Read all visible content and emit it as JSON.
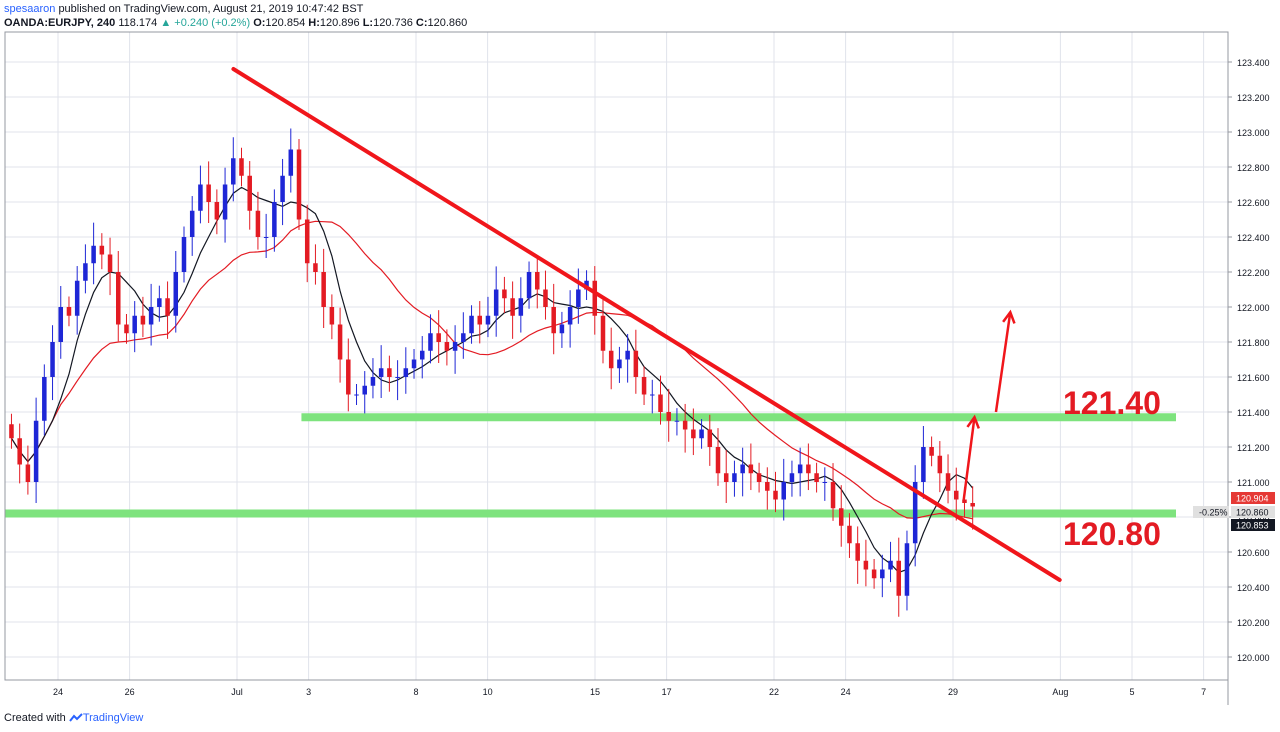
{
  "header": {
    "author": "spesaaron",
    "published_text": "published on TradingView.com, August 21, 2019 10:47:42 BST",
    "symbol": "OANDA:EURJPY, 240",
    "last": "118.174",
    "change": "▲ +0.240 (+0.2%)",
    "o_label": "O:",
    "o_val": "120.854",
    "h_label": "H:",
    "h_val": "120.896",
    "l_label": "L:",
    "l_val": "120.736",
    "c_label": "C:",
    "c_val": "120.860"
  },
  "footer": {
    "created_with": "Created with",
    "brand": "TradingView"
  },
  "chart_data": {
    "type": "candlestick",
    "y_range": [
      119.9,
      123.5
    ],
    "y_ticks": [
      120.0,
      120.2,
      120.4,
      120.6,
      120.8,
      121.0,
      121.2,
      121.4,
      121.6,
      121.8,
      122.0,
      122.2,
      122.4,
      122.6,
      122.8,
      123.0,
      123.2,
      123.4
    ],
    "y_tick_labels": [
      "120.000",
      "120.200",
      "120.400",
      "120.600",
      "120.800",
      "121.000",
      "121.200",
      "121.400",
      "121.600",
      "121.800",
      "122.000",
      "122.200",
      "122.400",
      "122.600",
      "122.800",
      "123.000",
      "123.200",
      "123.400"
    ],
    "x_range": [
      21.0,
      38.0
    ],
    "x_ticks": [
      {
        "t": 22.0,
        "label": "24"
      },
      {
        "t": 24.0,
        "label": "26"
      },
      {
        "t": 27.0,
        "label": "Jul"
      },
      {
        "t": 29.0,
        "label": "3"
      },
      {
        "t": 32.0,
        "label": "8"
      },
      {
        "t": 34.0,
        "label": "10"
      },
      {
        "t": 37.0,
        "label": "15"
      },
      {
        "t": 39.0,
        "label": "17"
      },
      {
        "t": 42.0,
        "label": "22"
      },
      {
        "t": 44.0,
        "label": "24"
      },
      {
        "t": 47.0,
        "label": "29"
      },
      {
        "t": 50.0,
        "label": "Aug"
      },
      {
        "t": 52.0,
        "label": "5"
      },
      {
        "t": 54.0,
        "label": "7"
      }
    ],
    "candles_closes": [
      121.25,
      121.1,
      121.0,
      121.35,
      121.6,
      121.8,
      122.0,
      121.95,
      122.15,
      122.25,
      122.35,
      122.3,
      122.2,
      121.9,
      121.85,
      121.95,
      121.9,
      122.0,
      122.05,
      121.95,
      122.2,
      122.4,
      122.55,
      122.7,
      122.6,
      122.5,
      122.7,
      122.85,
      122.75,
      122.55,
      122.4,
      122.4,
      122.6,
      122.75,
      122.9,
      122.5,
      122.25,
      122.2,
      122.0,
      121.9,
      121.7,
      121.5,
      121.5,
      121.55,
      121.6,
      121.65,
      121.6,
      121.6,
      121.65,
      121.7,
      121.75,
      121.85,
      121.8,
      121.75,
      121.8,
      121.85,
      121.95,
      121.9,
      121.95,
      122.1,
      122.05,
      121.95,
      122.05,
      122.2,
      122.1,
      122.0,
      121.85,
      121.9,
      122.0,
      122.1,
      122.15,
      121.95,
      121.75,
      121.65,
      121.7,
      121.75,
      121.6,
      121.5,
      121.5,
      121.4,
      121.35,
      121.35,
      121.3,
      121.25,
      121.3,
      121.2,
      121.05,
      121.0,
      121.05,
      121.1,
      121.05,
      121.0,
      120.95,
      120.9,
      121.0,
      121.05,
      121.1,
      121.05,
      121.0,
      121.0,
      120.85,
      120.75,
      120.65,
      120.55,
      120.5,
      120.45,
      120.5,
      120.55,
      120.35,
      120.65,
      121.0,
      121.2,
      121.15,
      121.05,
      120.95,
      120.9,
      120.88,
      120.86
    ],
    "trendline_down": {
      "from": [
        26.9,
        123.36
      ],
      "to": [
        49.98,
        120.44
      ]
    },
    "support_lines": [
      {
        "price": 121.37,
        "from_t": 28.8,
        "label": "121.40"
      },
      {
        "price": 120.82,
        "from_t": 21.0,
        "label": "120.80"
      }
    ],
    "price_tags": [
      {
        "price": 120.904,
        "label": "120.904",
        "bg": "#e53935",
        "fg": "#ffffff"
      },
      {
        "price": 120.86,
        "label": "120.860",
        "bg": "#e0e0e0",
        "fg": "#131722"
      },
      {
        "price": 120.853,
        "label": "120.853",
        "bg": "#131722",
        "fg": "#ffffff"
      }
    ],
    "pct_tag": "-0.25%",
    "arrows": [
      {
        "from": [
          47.3,
          120.9
        ],
        "to": [
          47.6,
          121.37
        ]
      },
      {
        "from": [
          48.2,
          121.4
        ],
        "to": [
          48.6,
          121.97
        ]
      }
    ],
    "annotations": [
      "121.40",
      "120.80"
    ],
    "colors": {
      "bull": "#1e26d6",
      "bear": "#e31b23",
      "fast_ma": "#131722",
      "slow_ma": "#e31b23",
      "trend": "#f0161b",
      "support": "#7ee37e",
      "annotation_text": "#e31b23",
      "grid": "#e0e3eb",
      "axis_text": "#131722"
    }
  }
}
